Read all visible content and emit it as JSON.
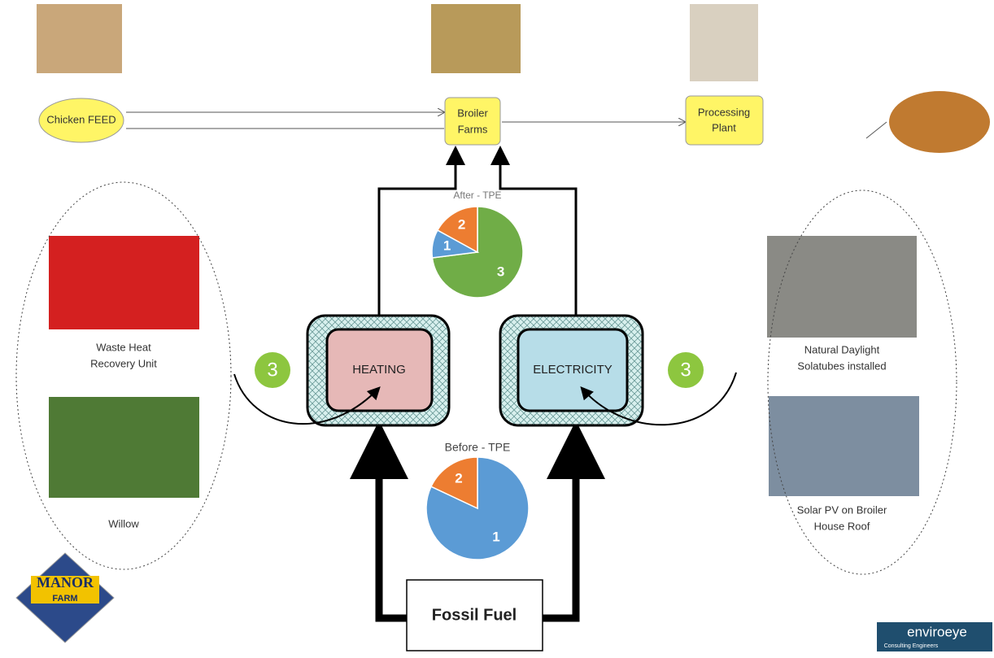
{
  "nodes": {
    "feed": "Chicken FEED",
    "farm": [
      "Broiler",
      "Farms"
    ],
    "plant": [
      "Processing",
      "Plant"
    ],
    "heating": "HEATING",
    "electricity": "ELECTRICITY",
    "fossil": "Fossil Fuel",
    "score_left": "3",
    "score_right": "3"
  },
  "left_options": [
    {
      "label": [
        "Waste Heat",
        "Recovery Unit"
      ]
    },
    {
      "label": [
        "Willow"
      ]
    }
  ],
  "right_options": [
    {
      "label": [
        "Natural Daylight",
        "Solatubes installed"
      ]
    },
    {
      "label": [
        "Solar PV on Broiler",
        "House Roof"
      ]
    }
  ],
  "pies": [
    {
      "title": "After - TPE",
      "slices": [
        {
          "label": "3",
          "value": 73,
          "color": "#70ad47"
        },
        {
          "label": "1",
          "value": 10,
          "color": "#5b9bd5"
        },
        {
          "label": "2",
          "value": 17,
          "color": "#ed7d31"
        }
      ]
    },
    {
      "title": "Before - TPE",
      "slices": [
        {
          "label": "1",
          "value": 82,
          "color": "#5b9bd5"
        },
        {
          "label": "2",
          "value": 18,
          "color": "#ed7d31"
        }
      ]
    }
  ],
  "logos": {
    "manor": [
      "MANOR",
      "FARM"
    ],
    "enviroeye": "enviroeye",
    "enviroeye_sub": "Consulting Engineers"
  }
}
